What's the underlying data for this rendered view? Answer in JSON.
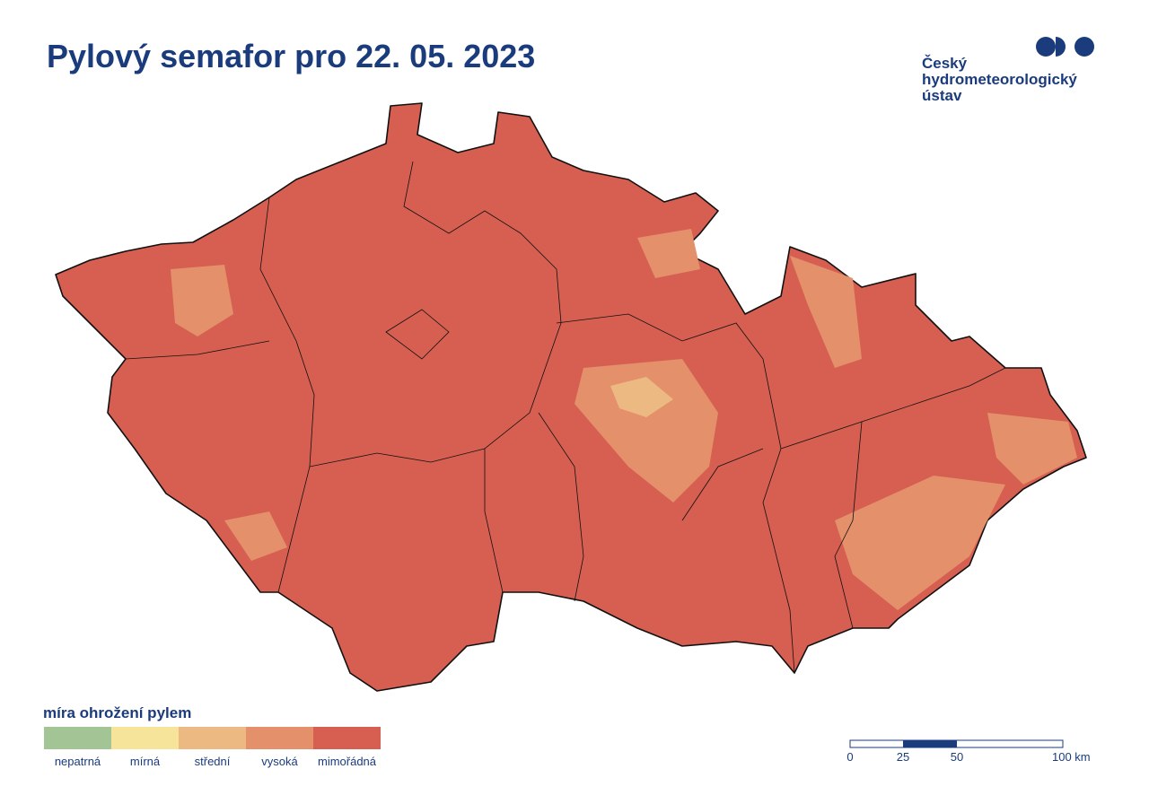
{
  "header": {
    "title": "Pylový semafor pro 22. 05. 2023"
  },
  "logo": {
    "lines": [
      "Český",
      "hydrometeorologický",
      "ústav"
    ]
  },
  "legend": {
    "title": "míra ohrožení pylem",
    "items": [
      {
        "label": "nepatrná",
        "color": "#a3c596"
      },
      {
        "label": "mírná",
        "color": "#f6e49a"
      },
      {
        "label": "střední",
        "color": "#edb983"
      },
      {
        "label": "vysoká",
        "color": "#e3906b"
      },
      {
        "label": "mimořádná",
        "color": "#d65f51"
      }
    ]
  },
  "scale_bar": {
    "labels": [
      "0",
      "25",
      "50",
      "100 km"
    ]
  }
}
